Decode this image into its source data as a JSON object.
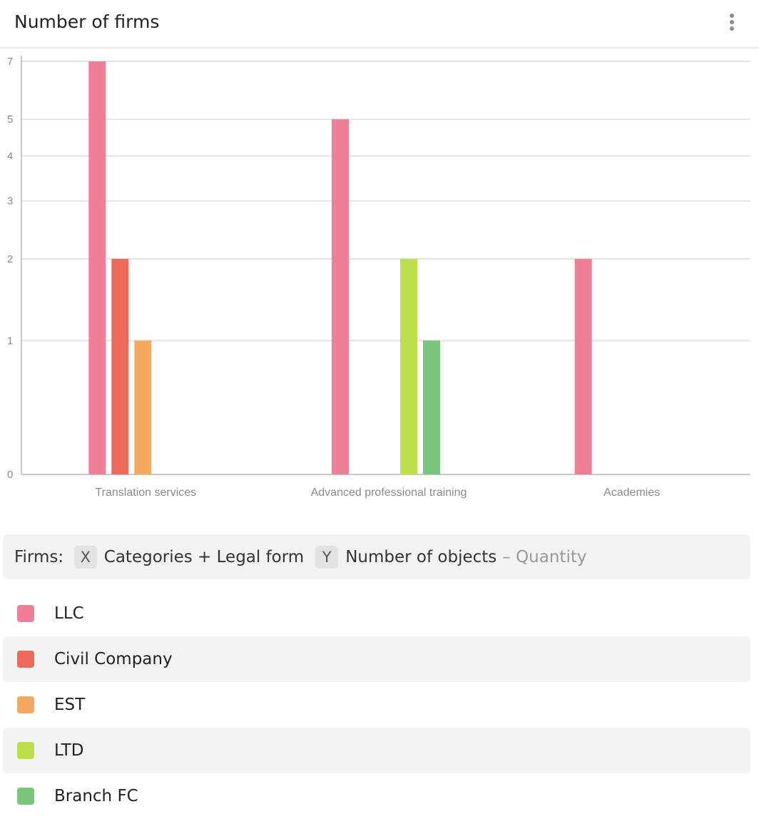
{
  "header": {
    "title": "Number of firms",
    "menu_icon": "more-vertical-icon"
  },
  "chart_data": {
    "type": "bar",
    "categories": [
      "Translation services",
      "Advanced professional training",
      "Academies"
    ],
    "series": [
      {
        "name": "LLC",
        "color": "#ef7e97",
        "values": [
          7,
          5,
          2
        ]
      },
      {
        "name": "Civil Company",
        "color": "#ec6a5a",
        "values": [
          2,
          null,
          null
        ]
      },
      {
        "name": "EST",
        "color": "#f3a95f",
        "values": [
          1,
          null,
          null
        ]
      },
      {
        "name": "LTD",
        "color": "#bedf4c",
        "values": [
          null,
          2,
          null
        ]
      },
      {
        "name": "Branch FC",
        "color": "#7bc67d",
        "values": [
          null,
          1,
          null
        ]
      }
    ],
    "yticks": [
      0,
      1,
      2,
      3,
      4,
      5,
      7
    ],
    "ylim": [
      0,
      7
    ],
    "yscale": "log1p",
    "grid": true,
    "legend": "bottom"
  },
  "info": {
    "source_label": "Firms",
    "x_chip": "X",
    "x_text": "Categories + Legal form",
    "y_chip": "Y",
    "y_text": "Number of objects",
    "y_suffix": "– Quantity"
  },
  "legend": {
    "items": [
      {
        "label": "LLC",
        "color": "#ef7e97"
      },
      {
        "label": "Civil Company",
        "color": "#ec6a5a"
      },
      {
        "label": "EST",
        "color": "#f3a95f"
      },
      {
        "label": "LTD",
        "color": "#bedf4c"
      },
      {
        "label": "Branch FC",
        "color": "#7bc67d"
      }
    ]
  }
}
